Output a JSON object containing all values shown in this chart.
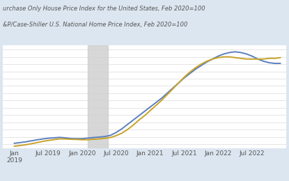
{
  "line1_label": "urchase Only House Price Index for the United States, Feb 2020=100",
  "line2_label": "&P/Case-Shiller U.S. National Home Price Index, Feb 2020=100",
  "line1_color": "#5B7FBE",
  "line2_color": "#C8A227",
  "background_color": "#dce6f0",
  "plot_bg_color": "#ffffff",
  "recession_color": "#d0d0d0",
  "x_ticks": [
    "Jan\n2019",
    "Jul 2019",
    "Jan 2020",
    "Jul 2020",
    "Jan 2021",
    "Jul 2021",
    "Jan 2022",
    "Jul 2022"
  ],
  "x_tick_labels": [
    "2019",
    "Jul 2019",
    "Jan 2020",
    "Jul 2020",
    "Jan 2021",
    "Jul 2021",
    "Jan 2022",
    "Jul 2022"
  ],
  "line1_x": [
    0,
    1,
    2,
    3,
    4,
    5,
    6,
    7,
    8,
    9,
    10,
    11,
    12,
    13,
    14,
    15,
    16,
    17,
    18,
    19,
    20,
    21,
    22,
    23,
    24,
    25,
    26,
    27,
    28,
    29,
    30,
    31,
    32,
    33,
    34,
    35,
    36,
    37,
    38,
    39,
    40,
    41,
    42,
    43,
    44,
    45,
    46,
    47
  ],
  "line1_y": [
    95.5,
    96.0,
    96.5,
    97.2,
    97.9,
    98.5,
    99.0,
    99.3,
    99.6,
    99.3,
    98.8,
    98.7,
    98.7,
    99.1,
    99.5,
    99.8,
    100.2,
    101.0,
    103.0,
    105.5,
    108.5,
    111.5,
    114.5,
    117.5,
    120.5,
    123.5,
    126.5,
    130.0,
    133.5,
    137.0,
    140.5,
    143.5,
    146.5,
    149.0,
    151.5,
    153.5,
    155.5,
    157.0,
    158.0,
    158.5,
    158.0,
    157.0,
    155.5,
    153.5,
    152.0,
    151.0,
    150.5,
    150.5
  ],
  "line2_x": [
    0,
    1,
    2,
    3,
    4,
    5,
    6,
    7,
    8,
    9,
    10,
    11,
    12,
    13,
    14,
    15,
    16,
    17,
    18,
    19,
    20,
    21,
    22,
    23,
    24,
    25,
    26,
    27,
    28,
    29,
    30,
    31,
    32,
    33,
    34,
    35,
    36,
    37,
    38,
    39,
    40,
    41,
    42,
    43,
    44,
    45,
    46,
    47
  ],
  "line2_y": [
    93.5,
    94.0,
    94.5,
    95.2,
    96.0,
    96.8,
    97.5,
    98.0,
    98.6,
    98.5,
    98.3,
    98.2,
    98.0,
    98.0,
    98.3,
    98.6,
    99.0,
    99.5,
    100.8,
    102.5,
    105.0,
    108.0,
    111.5,
    114.5,
    118.0,
    121.5,
    125.0,
    129.0,
    133.0,
    137.0,
    141.0,
    144.5,
    147.5,
    150.0,
    152.0,
    153.5,
    154.5,
    155.0,
    155.0,
    154.5,
    154.0,
    153.5,
    153.5,
    153.5,
    153.5,
    154.0,
    154.0,
    154.5
  ],
  "recession_start": 13.0,
  "recession_end": 16.5,
  "ylim": [
    92,
    163
  ],
  "xlim_min": -2,
  "xlim_max": 48,
  "linewidth": 1.4,
  "grid_color": "#e0e0e0",
  "text_color": "#555555",
  "label_fontsize": 6.0,
  "tick_fontsize": 6.5
}
